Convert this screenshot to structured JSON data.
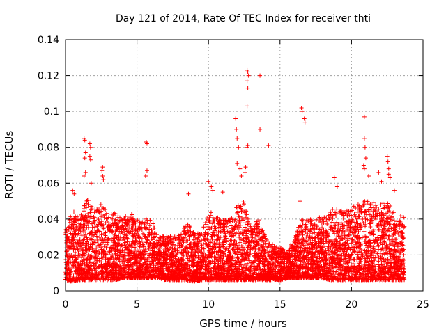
{
  "chart_data": {
    "type": "scatter",
    "title": "Day 121 of 2014, Rate Of TEC Index for receiver thti",
    "xlabel": "GPS time / hours",
    "ylabel": "ROTI / TECUs",
    "xlim": [
      0,
      25
    ],
    "ylim": [
      0,
      0.14
    ],
    "xticks": [
      0,
      5,
      10,
      15,
      20,
      25
    ],
    "xtick_labels": [
      "0",
      "5",
      "10",
      "15",
      "20",
      "25"
    ],
    "yticks": [
      0,
      0.02,
      0.04,
      0.06,
      0.08,
      0.1,
      0.12,
      0.14
    ],
    "ytick_labels": [
      "0",
      "0.02",
      "0.04",
      "0.06",
      "0.08",
      "0.1",
      "0.12",
      "0.14"
    ],
    "grid": true,
    "marker": "+",
    "series": [
      {
        "name": "ROTI",
        "color": "#ff0000",
        "envelope": {
          "hours": [
            0.0,
            0.5,
            1.0,
            1.5,
            2.0,
            2.5,
            3.0,
            3.5,
            4.0,
            4.5,
            5.0,
            5.5,
            6.0,
            6.5,
            7.0,
            7.5,
            8.0,
            8.5,
            9.0,
            9.5,
            10.0,
            10.5,
            11.0,
            11.5,
            12.0,
            12.5,
            13.0,
            13.5,
            14.0,
            14.5,
            15.0,
            15.5,
            16.0,
            16.5,
            17.0,
            17.5,
            18.0,
            18.5,
            19.0,
            19.5,
            20.0,
            20.5,
            21.0,
            21.5,
            22.0,
            22.5,
            23.0,
            23.7
          ],
          "typical_max": [
            0.034,
            0.045,
            0.04,
            0.052,
            0.046,
            0.05,
            0.042,
            0.044,
            0.04,
            0.044,
            0.04,
            0.04,
            0.04,
            0.03,
            0.032,
            0.03,
            0.032,
            0.038,
            0.032,
            0.032,
            0.045,
            0.042,
            0.04,
            0.04,
            0.048,
            0.05,
            0.036,
            0.04,
            0.03,
            0.026,
            0.024,
            0.022,
            0.03,
            0.04,
            0.04,
            0.04,
            0.042,
            0.046,
            0.046,
            0.044,
            0.046,
            0.05,
            0.05,
            0.05,
            0.048,
            0.05,
            0.044,
            0.042
          ],
          "typical_min": [
            0.006,
            0.005,
            0.006,
            0.006,
            0.006,
            0.006,
            0.006,
            0.006,
            0.007,
            0.007,
            0.007,
            0.007,
            0.007,
            0.007,
            0.006,
            0.006,
            0.006,
            0.006,
            0.005,
            0.006,
            0.006,
            0.006,
            0.006,
            0.006,
            0.006,
            0.006,
            0.006,
            0.006,
            0.006,
            0.006,
            0.006,
            0.007,
            0.007,
            0.007,
            0.007,
            0.007,
            0.007,
            0.006,
            0.006,
            0.006,
            0.006,
            0.006,
            0.006,
            0.006,
            0.006,
            0.006,
            0.006,
            0.006
          ]
        },
        "notable_points": [
          {
            "x": 0.5,
            "y": 0.056
          },
          {
            "x": 0.6,
            "y": 0.054
          },
          {
            "x": 1.3,
            "y": 0.085
          },
          {
            "x": 1.35,
            "y": 0.084
          },
          {
            "x": 1.4,
            "y": 0.077
          },
          {
            "x": 1.35,
            "y": 0.074
          },
          {
            "x": 1.4,
            "y": 0.066
          },
          {
            "x": 1.3,
            "y": 0.064
          },
          {
            "x": 1.7,
            "y": 0.082
          },
          {
            "x": 1.75,
            "y": 0.08
          },
          {
            "x": 1.7,
            "y": 0.075
          },
          {
            "x": 1.75,
            "y": 0.073
          },
          {
            "x": 1.8,
            "y": 0.06
          },
          {
            "x": 2.6,
            "y": 0.069
          },
          {
            "x": 2.55,
            "y": 0.067
          },
          {
            "x": 2.6,
            "y": 0.064
          },
          {
            "x": 2.65,
            "y": 0.062
          },
          {
            "x": 5.65,
            "y": 0.083
          },
          {
            "x": 5.7,
            "y": 0.082
          },
          {
            "x": 5.7,
            "y": 0.067
          },
          {
            "x": 5.6,
            "y": 0.064
          },
          {
            "x": 8.6,
            "y": 0.054
          },
          {
            "x": 10.0,
            "y": 0.061
          },
          {
            "x": 10.2,
            "y": 0.058
          },
          {
            "x": 10.3,
            "y": 0.056
          },
          {
            "x": 11.0,
            "y": 0.055
          },
          {
            "x": 11.9,
            "y": 0.096
          },
          {
            "x": 11.95,
            "y": 0.09
          },
          {
            "x": 12.0,
            "y": 0.085
          },
          {
            "x": 12.1,
            "y": 0.08
          },
          {
            "x": 12.0,
            "y": 0.071
          },
          {
            "x": 12.2,
            "y": 0.068
          },
          {
            "x": 12.3,
            "y": 0.064
          },
          {
            "x": 12.7,
            "y": 0.123
          },
          {
            "x": 12.75,
            "y": 0.122
          },
          {
            "x": 12.8,
            "y": 0.12
          },
          {
            "x": 12.7,
            "y": 0.117
          },
          {
            "x": 12.75,
            "y": 0.113
          },
          {
            "x": 12.7,
            "y": 0.103
          },
          {
            "x": 12.75,
            "y": 0.081
          },
          {
            "x": 12.7,
            "y": 0.08
          },
          {
            "x": 12.6,
            "y": 0.069
          },
          {
            "x": 12.55,
            "y": 0.066
          },
          {
            "x": 13.6,
            "y": 0.12
          },
          {
            "x": 13.6,
            "y": 0.09
          },
          {
            "x": 14.2,
            "y": 0.081
          },
          {
            "x": 16.5,
            "y": 0.102
          },
          {
            "x": 16.55,
            "y": 0.1
          },
          {
            "x": 16.7,
            "y": 0.096
          },
          {
            "x": 16.75,
            "y": 0.094
          },
          {
            "x": 16.4,
            "y": 0.05
          },
          {
            "x": 18.8,
            "y": 0.063
          },
          {
            "x": 19.0,
            "y": 0.058
          },
          {
            "x": 20.9,
            "y": 0.097
          },
          {
            "x": 20.9,
            "y": 0.085
          },
          {
            "x": 20.95,
            "y": 0.08
          },
          {
            "x": 21.0,
            "y": 0.074
          },
          {
            "x": 20.85,
            "y": 0.07
          },
          {
            "x": 20.9,
            "y": 0.068
          },
          {
            "x": 21.2,
            "y": 0.064
          },
          {
            "x": 21.9,
            "y": 0.066
          },
          {
            "x": 22.1,
            "y": 0.061
          },
          {
            "x": 22.5,
            "y": 0.075
          },
          {
            "x": 22.55,
            "y": 0.072
          },
          {
            "x": 22.6,
            "y": 0.068
          },
          {
            "x": 22.6,
            "y": 0.065
          },
          {
            "x": 22.7,
            "y": 0.063
          },
          {
            "x": 23.0,
            "y": 0.056
          }
        ]
      }
    ]
  }
}
